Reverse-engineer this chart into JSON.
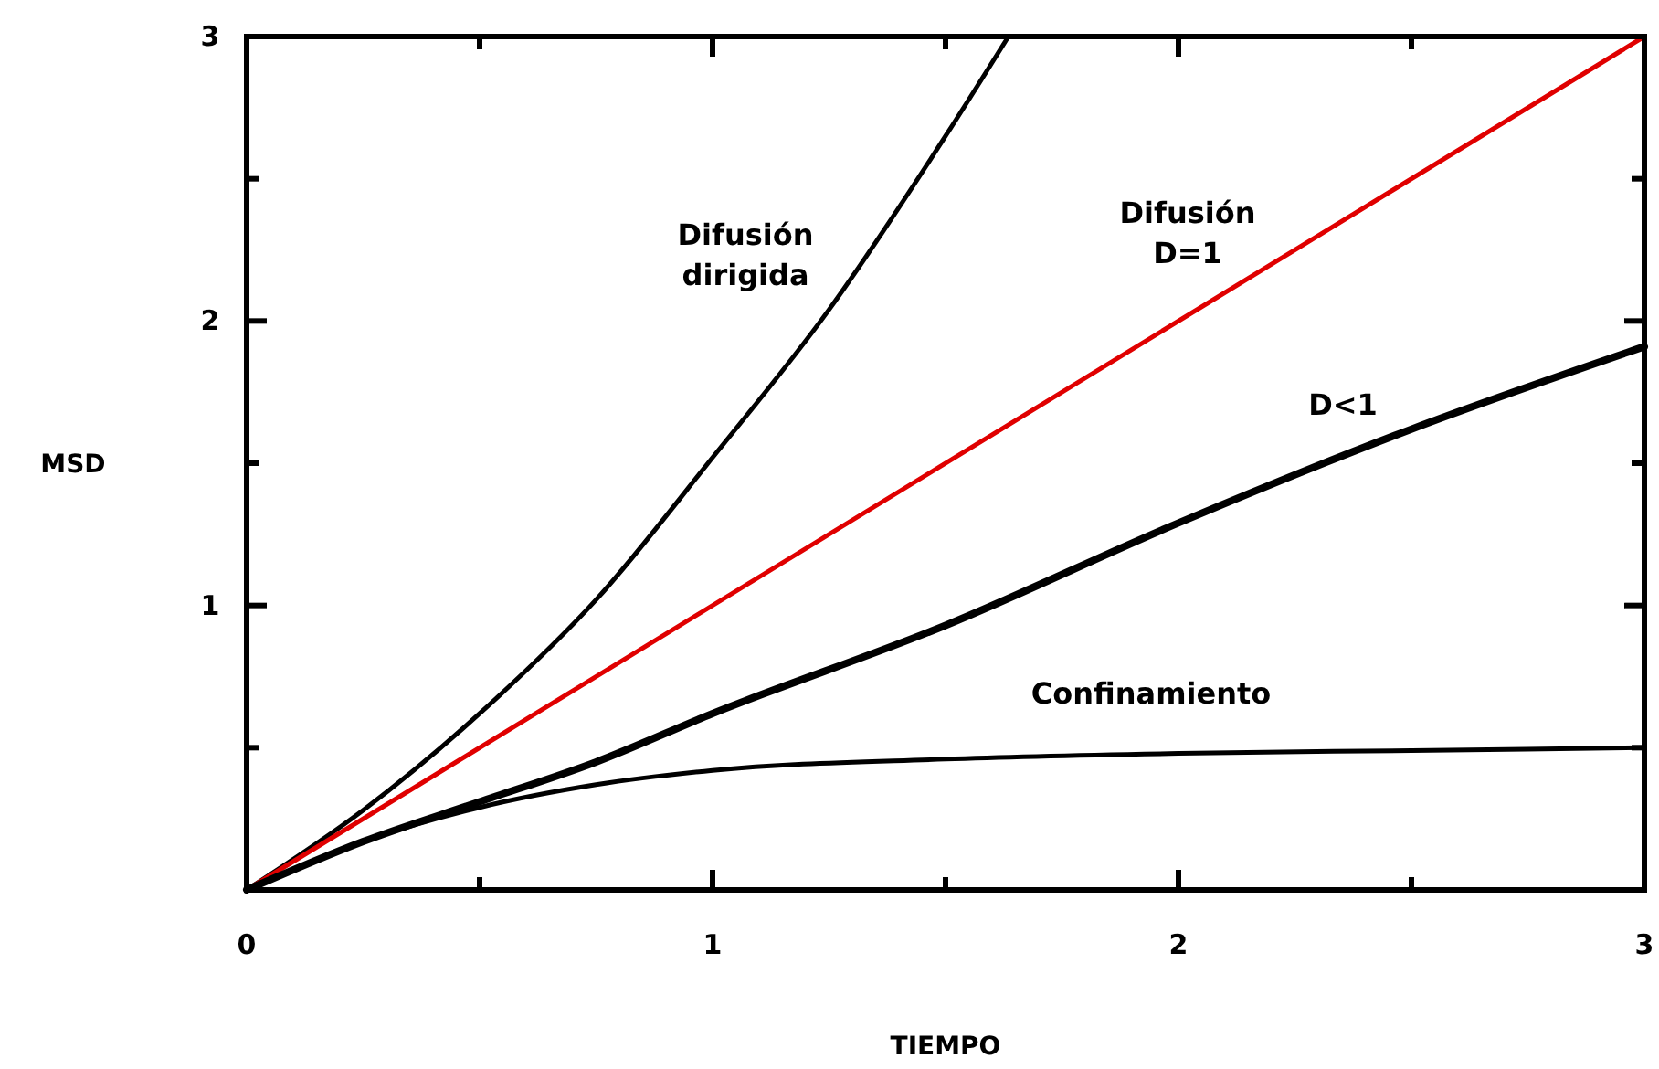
{
  "chart_data": {
    "type": "line",
    "xlabel": "TIEMPO",
    "ylabel": "MSD",
    "xlim": [
      0,
      3
    ],
    "ylim": [
      0,
      3
    ],
    "xticks": [
      0,
      {
        "value": 0.5,
        "label": null
      },
      1,
      {
        "value": 1.5,
        "label": null
      },
      2,
      {
        "value": 2.5,
        "label": null
      },
      3
    ],
    "yticks": [
      {
        "value": 0,
        "label": null
      },
      {
        "value": 0.5,
        "label": null
      },
      1,
      {
        "value": 1.5,
        "label": null
      },
      2,
      {
        "value": 2.5,
        "label": null
      },
      3
    ],
    "grid": false,
    "marker": "none",
    "line_style": "solid",
    "series": [
      {
        "name": "Difusión\ndirigida",
        "color": "#000000",
        "x": [
          0,
          0.25,
          0.5,
          0.75,
          1,
          1.25,
          1.5,
          1.635
        ],
        "values": [
          0,
          0.28,
          0.62,
          1.02,
          1.52,
          2.04,
          2.65,
          3.0
        ]
      },
      {
        "name": "Difusión\nD=1",
        "color": "#e00000",
        "x": [
          0,
          3
        ],
        "values": [
          0,
          3
        ]
      },
      {
        "name": "D<1",
        "color": "#000000",
        "x": [
          0,
          0.25,
          0.5,
          0.75,
          1,
          1.5,
          2,
          2.5,
          3
        ],
        "values": [
          0,
          0.17,
          0.31,
          0.45,
          0.62,
          0.93,
          1.29,
          1.62,
          1.91
        ]
      },
      {
        "name": "Confinamiento",
        "color": "#000000",
        "x": [
          0,
          0.25,
          0.5,
          0.75,
          1,
          1.5,
          2,
          2.5,
          3
        ],
        "values": [
          0,
          0.17,
          0.29,
          0.37,
          0.42,
          0.46,
          0.48,
          0.49,
          0.5
        ]
      }
    ]
  }
}
